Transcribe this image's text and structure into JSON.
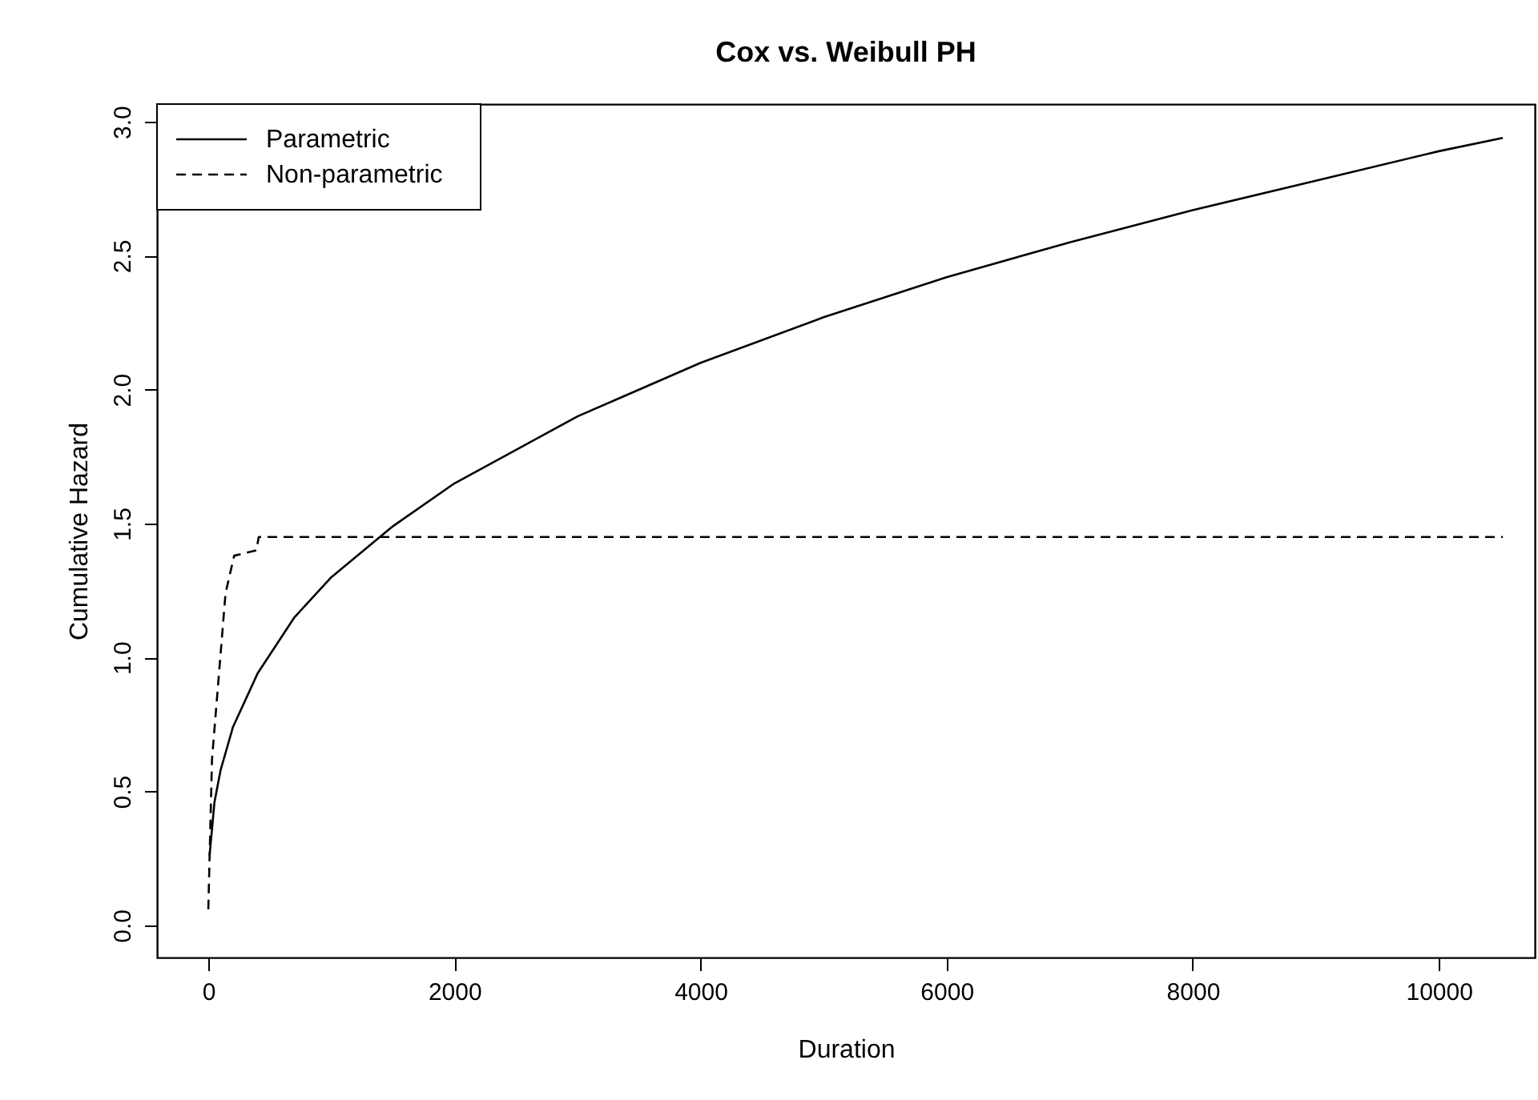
{
  "chart_data": {
    "type": "line",
    "title": "Cox vs. Weibull PH",
    "xlabel": "Duration",
    "ylabel": "Cumulative Hazard",
    "series": [
      {
        "name": "Parametric",
        "color": "#000000",
        "line_style": "solid",
        "x": [
          10,
          50,
          100,
          200,
          400,
          700,
          1000,
          1500,
          2000,
          3000,
          4000,
          5000,
          6000,
          7000,
          8000,
          9000,
          10000,
          10520
        ],
        "values": [
          0.26,
          0.46,
          0.58,
          0.74,
          0.94,
          1.15,
          1.3,
          1.49,
          1.65,
          1.9,
          2.1,
          2.27,
          2.42,
          2.55,
          2.67,
          2.78,
          2.89,
          2.94
        ]
      },
      {
        "name": "Non-parametric",
        "color": "#000000",
        "line_style": "dashed",
        "x": [
          0,
          30,
          140,
          210,
          390,
          410,
          10520
        ],
        "values": [
          0.06,
          0.62,
          1.24,
          1.38,
          1.4,
          1.45,
          1.45
        ]
      }
    ],
    "xlim": [
      -417,
      10780
    ],
    "xticks": [
      0,
      2000,
      4000,
      6000,
      8000,
      10000
    ],
    "ylim": [
      -0.12,
      3.066
    ],
    "yticks": [
      {
        "value": 0,
        "label": "0.0"
      },
      {
        "value": 0.5,
        "label": "0.5"
      },
      {
        "value": 1,
        "label": "1.0"
      },
      {
        "value": 1.5,
        "label": "1.5"
      },
      {
        "value": 2,
        "label": "2.0"
      },
      {
        "value": 2.5,
        "label": "2.5"
      },
      {
        "value": 3,
        "label": "3.0"
      }
    ],
    "grid": false,
    "legend": "top left",
    "marker": "none"
  }
}
